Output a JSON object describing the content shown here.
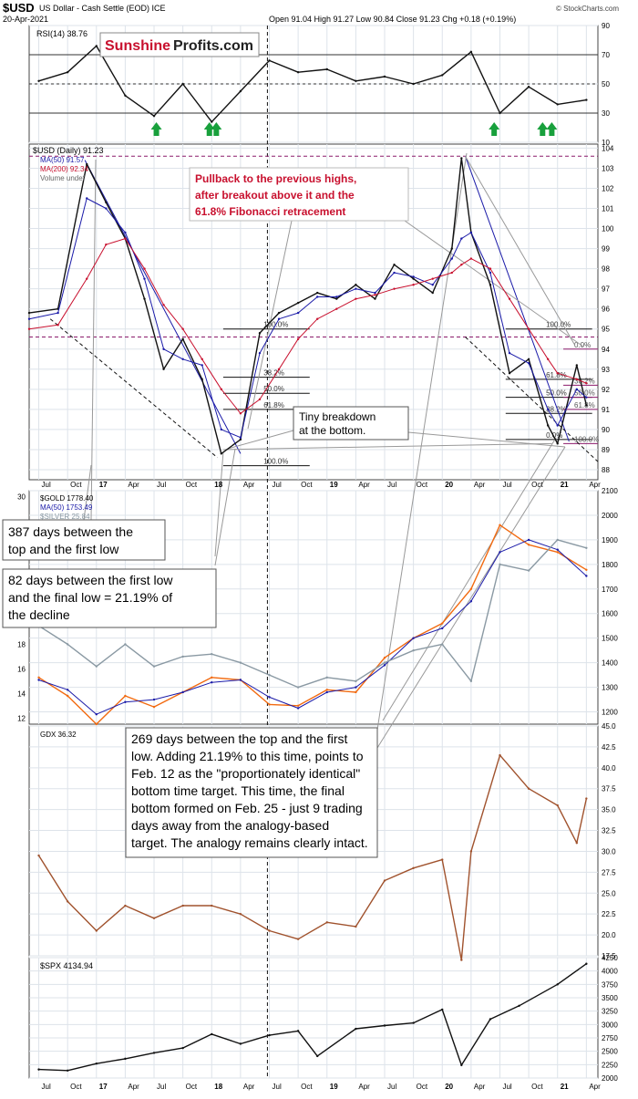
{
  "header": {
    "title": "$USD",
    "subtitle": "US Dollar - Cash Settle (EOD) ICE",
    "date": "20-Apr-2021",
    "ohlc": "Open 91.04 High 91.27 Low 90.84 Close 91.23 Chg +0.18 (+0.19%)",
    "credit": "© StockCharts.com"
  },
  "watermark": {
    "part1": "Sunshine",
    "part2": "Profits.com"
  },
  "colors": {
    "price": "#111111",
    "ma50": "#1a1aa8",
    "ma200": "#c8102e",
    "gold": "#f26a10",
    "silver": "#8a99a3",
    "gdx": "#a0522d",
    "spx": "#111111",
    "arrow": "#18a03c",
    "note_red": "#c8102e",
    "grid": "#dde3ea"
  },
  "panels": {
    "rsi": {
      "label": "RSI(14) 38.76",
      "ticks": [
        "90",
        "70",
        "50",
        "30",
        "10"
      ]
    },
    "usd": {
      "label": "$USD (Daily) 91.23",
      "legend": [
        "MA(50) 91.57",
        "MA(200) 92.34",
        "Volume undef"
      ],
      "ticks": [
        "104",
        "103",
        "102",
        "101",
        "100",
        "99",
        "98",
        "97",
        "96",
        "95",
        "94",
        "93",
        "92",
        "91",
        "90",
        "89",
        "88"
      ],
      "fib_left": [
        "100.0%",
        "61.8%",
        "50.0%",
        "38.2%",
        "100.0%"
      ],
      "fib_right": [
        "100.0%",
        "61.8%",
        "50.0%",
        "38.2%",
        "0.0%"
      ],
      "fib_far": [
        "0.0%",
        "38.2%",
        "50.0%",
        "61.8%",
        "100.0%"
      ]
    },
    "gold": {
      "label": "$GOLD 1778.40",
      "ma": "MA(50) 1753.49",
      "silver": "$SILVER 25.84",
      "ticks": [
        "2100",
        "2000",
        "1900",
        "1800",
        "1700",
        "1600",
        "1500",
        "1400",
        "1300",
        "1200"
      ],
      "left_ticks": [
        "30",
        "18",
        "16",
        "14",
        "12"
      ]
    },
    "gdx": {
      "label": "GDX 36.32",
      "ticks": [
        "45.0",
        "42.5",
        "40.0",
        "37.5",
        "35.0",
        "32.5",
        "30.0",
        "27.5",
        "25.0",
        "22.5",
        "20.0",
        "17.5"
      ]
    },
    "spx": {
      "label": "$SPX 4134.94",
      "ticks": [
        "4250",
        "4000",
        "3750",
        "3500",
        "3250",
        "3000",
        "2750",
        "2500",
        "2250",
        "2000"
      ]
    }
  },
  "x_axis": [
    "Jul",
    "Oct",
    "17",
    "Apr",
    "Jul",
    "Oct",
    "18",
    "Apr",
    "Jul",
    "Oct",
    "19",
    "Apr",
    "Jul",
    "Oct",
    "20",
    "Apr",
    "Jul",
    "Oct",
    "21",
    "Apr"
  ],
  "annotations": {
    "pullback": "Pullback to the previous highs, after breakout above it and the 61.8% Fibonacci retracement",
    "tiny": "Tiny breakdown at the bottom.",
    "days387": "387 days between the top and the first low",
    "days82": "82 days between the first low and the final low = 21.19% of the decline",
    "days269": "269 days between the top and the first low. Adding 21.19% to this time, points to Feb. 12 as the \"proportionately identical\" bottom time target. This time, the final bottom formed on Feb. 25 - just 9 trading days away from the analogy-based target. The analogy remains clearly intact."
  },
  "chart_data": [
    {
      "type": "line",
      "panel": "RSI(14)",
      "ylim": [
        10,
        90
      ],
      "x": [
        "2016-07",
        "2016-10",
        "2017-01",
        "2017-04",
        "2017-07",
        "2017-10",
        "2018-01",
        "2018-04",
        "2018-07",
        "2018-10",
        "2019-01",
        "2019-04",
        "2019-07",
        "2019-10",
        "2020-01",
        "2020-04",
        "2020-07",
        "2020-10",
        "2021-01",
        "2021-04"
      ],
      "series": [
        {
          "name": "RSI(14)",
          "values": [
            52,
            58,
            76,
            42,
            28,
            50,
            24,
            45,
            66,
            58,
            60,
            52,
            55,
            50,
            56,
            72,
            30,
            48,
            36,
            39
          ]
        }
      ]
    },
    {
      "type": "line",
      "panel": "$USD (Daily)",
      "ylim": [
        87.5,
        104.2
      ],
      "x": [
        "2016-06",
        "2016-09",
        "2016-12",
        "2017-02",
        "2017-04",
        "2017-06",
        "2017-08",
        "2017-10",
        "2017-12",
        "2018-02",
        "2018-04",
        "2018-06",
        "2018-08",
        "2018-10",
        "2018-12",
        "2019-02",
        "2019-04",
        "2019-06",
        "2019-08",
        "2019-10",
        "2019-12",
        "2020-02",
        "2020-03",
        "2020-04",
        "2020-06",
        "2020-08",
        "2020-10",
        "2020-12",
        "2021-01",
        "2021-03",
        "2021-04"
      ],
      "series": [
        {
          "name": "$USD (Daily)",
          "values": [
            95.8,
            96.0,
            103.2,
            101.3,
            99.5,
            96.5,
            93.0,
            94.5,
            92.5,
            88.8,
            89.5,
            94.8,
            95.8,
            96.3,
            96.8,
            96.5,
            97.2,
            96.5,
            98.2,
            97.5,
            96.8,
            99.0,
            103.5,
            99.8,
            97.2,
            92.8,
            93.5,
            90.2,
            89.3,
            93.2,
            91.2
          ]
        },
        {
          "name": "MA(50)",
          "values": [
            95.5,
            95.8,
            101.5,
            101.0,
            99.8,
            97.5,
            94.0,
            93.5,
            93.2,
            90.0,
            89.6,
            93.8,
            95.5,
            95.8,
            96.6,
            96.6,
            97.0,
            96.8,
            97.8,
            97.6,
            97.2,
            98.5,
            99.5,
            99.8,
            97.8,
            93.8,
            93.3,
            91.0,
            90.2,
            92.0,
            91.6
          ]
        },
        {
          "name": "MA(200)",
          "values": [
            95.0,
            95.2,
            97.5,
            99.2,
            99.5,
            98.0,
            96.2,
            95.0,
            93.5,
            92.0,
            90.8,
            91.5,
            93.0,
            94.5,
            95.5,
            96.0,
            96.5,
            96.7,
            97.0,
            97.2,
            97.5,
            97.8,
            98.2,
            98.5,
            98.0,
            96.5,
            95.0,
            93.5,
            92.8,
            92.5,
            92.3
          ]
        }
      ]
    },
    {
      "type": "line",
      "panel": "$GOLD",
      "ylim": [
        1150,
        2100
      ],
      "x": [
        "2016-07",
        "2016-10",
        "2017-01",
        "2017-04",
        "2017-07",
        "2017-10",
        "2018-01",
        "2018-04",
        "2018-07",
        "2018-10",
        "2019-01",
        "2019-04",
        "2019-07",
        "2019-10",
        "2020-01",
        "2020-04",
        "2020-07",
        "2020-10",
        "2021-01",
        "2021-04"
      ],
      "series": [
        {
          "name": "$GOLD",
          "values": [
            1340,
            1265,
            1150,
            1265,
            1220,
            1280,
            1340,
            1330,
            1230,
            1225,
            1290,
            1280,
            1420,
            1500,
            1560,
            1700,
            1960,
            1880,
            1850,
            1778
          ]
        },
        {
          "name": "MA(50)",
          "values": [
            1330,
            1290,
            1190,
            1240,
            1250,
            1280,
            1320,
            1330,
            1260,
            1215,
            1280,
            1300,
            1390,
            1500,
            1540,
            1650,
            1850,
            1900,
            1860,
            1753
          ]
        },
        {
          "name": "$SILVER",
          "values": [
            19.5,
            18.0,
            16.2,
            18.0,
            16.2,
            17.0,
            17.2,
            16.5,
            15.5,
            14.5,
            15.3,
            15.0,
            16.5,
            17.5,
            18.0,
            15.0,
            24.5,
            24.0,
            26.5,
            25.84
          ]
        }
      ]
    },
    {
      "type": "line",
      "panel": "GDX",
      "ylim": [
        17.5,
        45.0
      ],
      "x": [
        "2016-07",
        "2016-10",
        "2017-01",
        "2017-04",
        "2017-07",
        "2017-10",
        "2018-01",
        "2018-04",
        "2018-07",
        "2018-10",
        "2019-01",
        "2019-04",
        "2019-07",
        "2019-10",
        "2020-01",
        "2020-03",
        "2020-04",
        "2020-07",
        "2020-10",
        "2021-01",
        "2021-03",
        "2021-04"
      ],
      "series": [
        {
          "name": "GDX",
          "values": [
            29.5,
            24.0,
            20.5,
            23.5,
            22.0,
            23.5,
            23.5,
            22.5,
            20.5,
            19.5,
            21.5,
            21.0,
            26.5,
            28.0,
            29.0,
            17.0,
            30.0,
            41.5,
            37.5,
            35.5,
            31.0,
            36.32
          ]
        }
      ]
    },
    {
      "type": "line",
      "panel": "$SPX",
      "ylim": [
        2000,
        4250
      ],
      "x": [
        "2016-07",
        "2016-10",
        "2017-01",
        "2017-04",
        "2017-07",
        "2017-10",
        "2018-01",
        "2018-04",
        "2018-07",
        "2018-10",
        "2018-12",
        "2019-04",
        "2019-07",
        "2019-10",
        "2020-01",
        "2020-03",
        "2020-06",
        "2020-09",
        "2021-01",
        "2021-04"
      ],
      "series": [
        {
          "name": "$SPX",
          "values": [
            2160,
            2140,
            2270,
            2360,
            2470,
            2560,
            2820,
            2640,
            2800,
            2880,
            2410,
            2920,
            2980,
            3030,
            3280,
            2240,
            3100,
            3350,
            3750,
            4135
          ]
        }
      ]
    }
  ]
}
